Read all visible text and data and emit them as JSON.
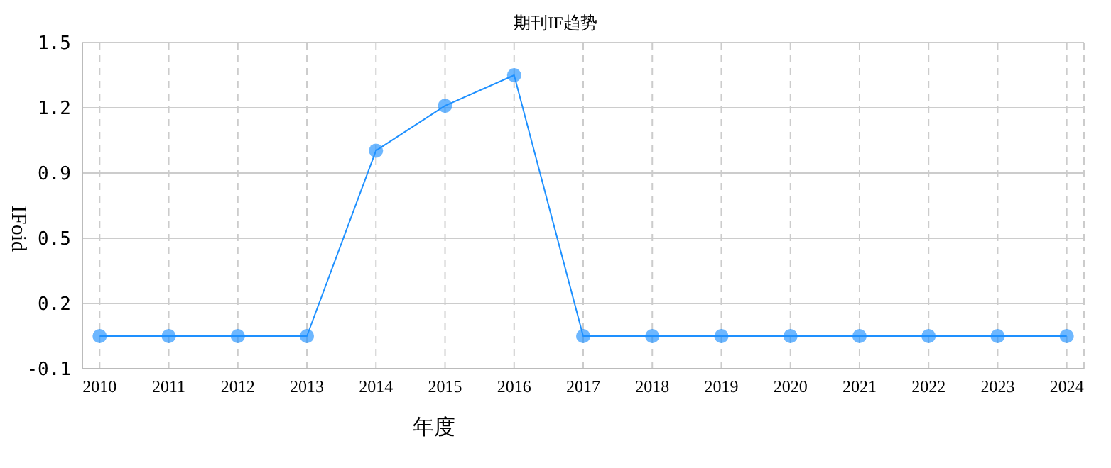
{
  "chart_data": {
    "type": "line",
    "title": "期刊IF趋势",
    "xlabel": "年度",
    "ylabel": "IFoid",
    "categories": [
      "2010",
      "2011",
      "2012",
      "2013",
      "2014",
      "2015",
      "2016",
      "2017",
      "2018",
      "2019",
      "2020",
      "2021",
      "2022",
      "2023",
      "2024"
    ],
    "series": [
      {
        "color": "#1e90ff",
        "values": [
          0.06,
          0.06,
          0.06,
          0.06,
          0.97,
          1.19,
          1.34,
          0.06,
          0.06,
          0.06,
          0.06,
          0.06,
          0.06,
          0.06,
          0.06
        ]
      }
    ],
    "ylim": [
      -0.1,
      1.5
    ],
    "yticks": [
      -0.1,
      {
        "value": 0.22,
        "label": "0.2"
      },
      {
        "value": 0.54,
        "label": "0.5"
      },
      {
        "value": 0.86,
        "label": "0.9"
      },
      {
        "value": 1.18,
        "label": "1.2"
      },
      1.5
    ],
    "grid": true,
    "marker": "circle",
    "line_style": "solid"
  }
}
